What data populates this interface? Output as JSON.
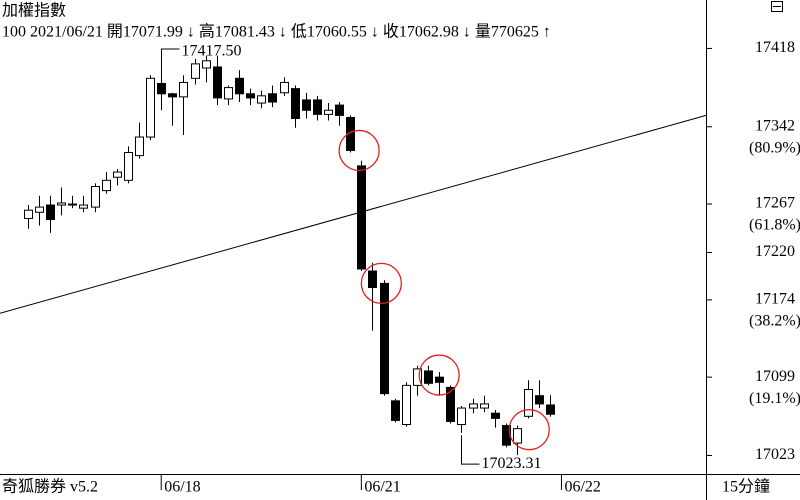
{
  "chart_data": {
    "type": "candlestick",
    "title": "加權指數",
    "info": "100 2021/06/21 開17071.99 ↓ 高17081.43 ↓ 低17060.55 ↓ 收17062.98 ↓ 量770625 ↑",
    "open": [
      17253,
      17259,
      17266,
      17266,
      17266,
      17263,
      17264,
      17280,
      17293,
      17290,
      17314,
      17332,
      17384,
      17374,
      17371,
      17389,
      17399,
      17400,
      17369,
      17389,
      17374,
      17365,
      17374,
      17375,
      17379,
      17368,
      17368,
      17354,
      17363,
      17351,
      17304,
      17202,
      17190,
      17076,
      17053,
      17091,
      17105,
      17099,
      17089,
      17053,
      17069,
      17069,
      17064,
      17052,
      17035,
      17061,
      17081,
      17071.99
    ],
    "high": [
      17266,
      17275,
      17275,
      17283,
      17275,
      17275,
      17287,
      17298,
      17301,
      17323,
      17346,
      17392,
      17417.5,
      17375,
      17392,
      17408,
      17411,
      17411,
      17382,
      17397,
      17379,
      17377,
      17382,
      17390,
      17382,
      17375,
      17372,
      17365,
      17366,
      17353,
      17309,
      17210,
      17193,
      17078,
      17094,
      17110,
      17110,
      17104,
      17091,
      17071,
      17078,
      17081,
      17067,
      17054,
      17052,
      17096,
      17096,
      17081.43
    ],
    "low": [
      17243,
      17246,
      17239,
      17256,
      17263,
      17259,
      17259,
      17277,
      17285,
      17287,
      17311,
      17329,
      17358,
      17343,
      17334,
      17383,
      17385,
      17363,
      17363,
      17366,
      17363,
      17360,
      17361,
      17372,
      17341,
      17350,
      17348,
      17348,
      17343,
      17317,
      17202,
      17144,
      17081,
      17055,
      17051,
      17081,
      17091,
      17081,
      17054,
      17045,
      17064,
      17065,
      17050,
      17031,
      17023.31,
      17059,
      17069,
      17060.55
    ],
    "close": [
      17261,
      17264,
      17252,
      17268,
      17267,
      17266,
      17284,
      17290,
      17298,
      17317,
      17332,
      17389,
      17374,
      17371,
      17385,
      17403,
      17406,
      17370,
      17380,
      17374,
      17370,
      17372,
      17366,
      17385,
      17350,
      17358,
      17354,
      17358,
      17353,
      17319,
      17204,
      17186,
      17083,
      17057,
      17091,
      17107,
      17093,
      17094,
      17056,
      17069,
      17073,
      17073,
      17059,
      17033,
      17049,
      17087,
      17073,
      17062.98
    ],
    "xlim": [
      -2.5,
      61
    ],
    "xticks": [
      {
        "value": 12,
        "label": "06/18"
      },
      {
        "value": 30,
        "label": "06/21"
      },
      {
        "value": 48,
        "label": "06/22"
      }
    ],
    "ylim": [
      17005,
      17465
    ],
    "yticks": [
      17418,
      17342,
      17267,
      17220,
      17174,
      17099,
      17023
    ],
    "retracement_levels": [
      17342,
      17267,
      17174,
      17099
    ],
    "retracement_labels": [
      "(80.9%)",
      "(61.8%)",
      "(38.2%)",
      "(19.1%)"
    ],
    "trendline": {
      "x": [
        -2.5,
        61
      ],
      "y": [
        17161,
        17353
      ]
    },
    "circles": [
      {
        "x": 29.8,
        "y": 17319
      },
      {
        "x": 31.8,
        "y": 17190
      },
      {
        "x": 37.0,
        "y": 17101
      },
      {
        "x": 45.1,
        "y": 17048
      }
    ],
    "high_annotation": "17417.50",
    "low_annotation": "17023.31",
    "footer": "奇狐勝券 v5.2",
    "period": "15分鐘"
  }
}
